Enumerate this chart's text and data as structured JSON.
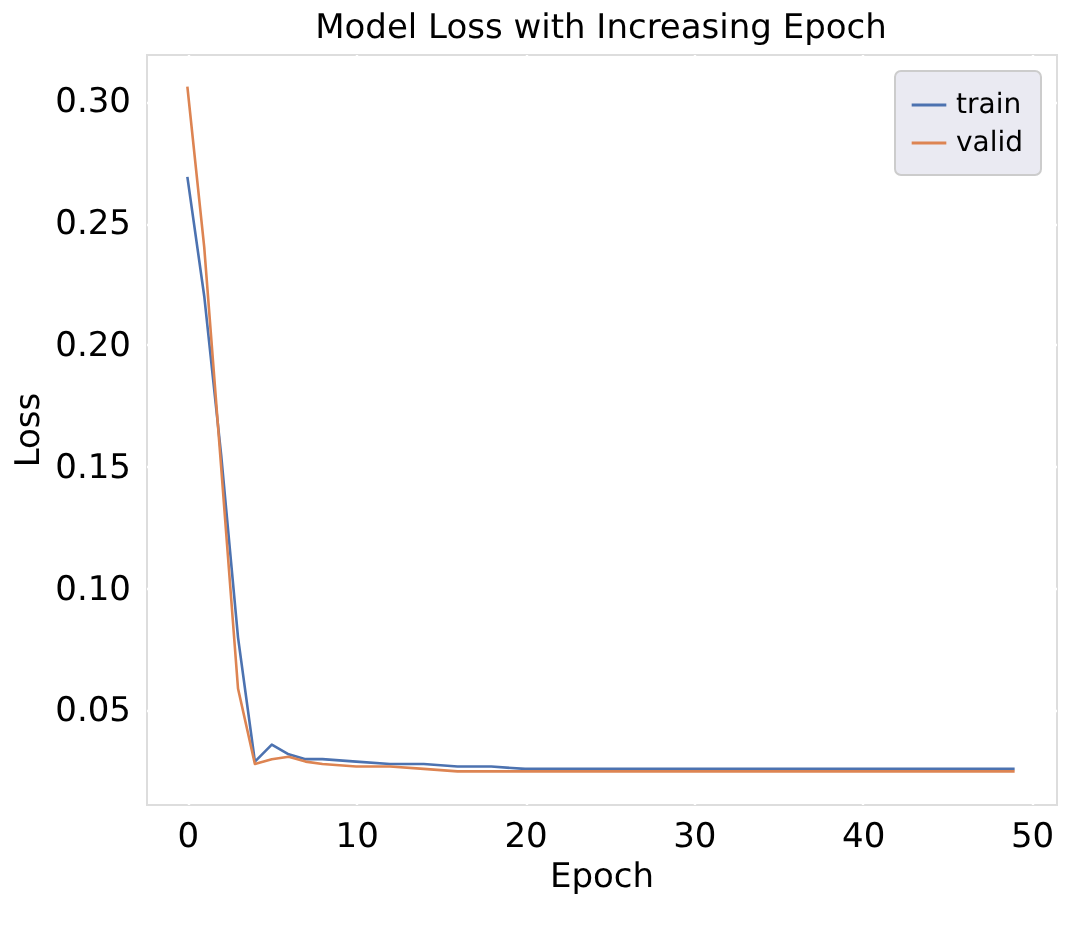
{
  "chart_data": {
    "type": "line",
    "title": "Model Loss with Increasing Epoch",
    "xlabel": "Epoch",
    "ylabel": "Loss",
    "x": [
      0,
      1,
      2,
      3,
      4,
      5,
      6,
      7,
      8,
      10,
      12,
      14,
      16,
      18,
      20,
      25,
      30,
      35,
      40,
      45,
      49
    ],
    "series": [
      {
        "name": "train",
        "color": "#4c72b0",
        "values": [
          0.269,
          0.22,
          0.155,
          0.08,
          0.029,
          0.036,
          0.032,
          0.03,
          0.03,
          0.029,
          0.028,
          0.028,
          0.027,
          0.027,
          0.026,
          0.026,
          0.026,
          0.026,
          0.026,
          0.026,
          0.026
        ]
      },
      {
        "name": "valid",
        "color": "#dd8452",
        "values": [
          0.306,
          0.24,
          0.15,
          0.059,
          0.028,
          0.03,
          0.031,
          0.029,
          0.028,
          0.027,
          0.027,
          0.026,
          0.025,
          0.025,
          0.025,
          0.025,
          0.025,
          0.025,
          0.025,
          0.025,
          0.025
        ]
      }
    ],
    "xlim": [
      -2.45,
      51.45
    ],
    "xticks": [
      0,
      10,
      20,
      30,
      40,
      50
    ],
    "ylim": [
      0.0116,
      0.3194
    ],
    "yticks": [
      {
        "value": 0.05,
        "label": "0.05"
      },
      {
        "value": 0.1,
        "label": "0.10"
      },
      {
        "value": 0.15,
        "label": "0.15"
      },
      {
        "value": 0.2,
        "label": "0.20"
      },
      {
        "value": 0.25,
        "label": "0.25"
      },
      {
        "value": 0.3,
        "label": "0.30"
      }
    ],
    "grid": true,
    "legend": "top right",
    "line_style": "solid",
    "marker": "none"
  }
}
